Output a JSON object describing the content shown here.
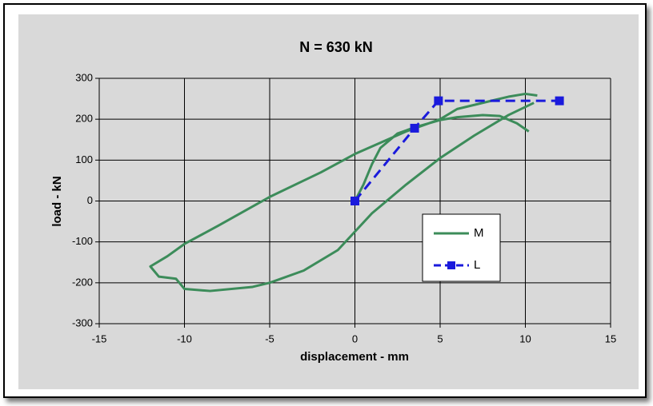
{
  "chart_data": {
    "type": "line",
    "title": "N = 630 kN",
    "x_label": "displacement - mm",
    "y_label": "load - kN",
    "xlim": [
      -15,
      15
    ],
    "xticks": [
      -15,
      -10,
      -5,
      0,
      5,
      10,
      15
    ],
    "ylim": [
      -300,
      300
    ],
    "yticks": [
      -300,
      -200,
      -100,
      0,
      100,
      200,
      300
    ],
    "grid": true,
    "legend": "right",
    "series": [
      {
        "name": "M",
        "color": "#3c8c5a",
        "style": "solid",
        "x": [
          0,
          0.5,
          1,
          1.5,
          2.5,
          3.5,
          5,
          6,
          7.5,
          8.5,
          9.5,
          10.2,
          null,
          10.7,
          10,
          9,
          8,
          6,
          5,
          3,
          0,
          -2,
          -5,
          -8,
          -10,
          -11,
          -12,
          -11.5,
          -10.5,
          -10,
          -8.5,
          -6,
          -5,
          -3,
          -1,
          0,
          1,
          3,
          5,
          7,
          9,
          10.5
        ],
        "values": [
          0,
          40,
          90,
          130,
          165,
          180,
          198,
          205,
          210,
          208,
          190,
          170,
          null,
          258,
          262,
          255,
          245,
          225,
          200,
          170,
          115,
          70,
          10,
          -60,
          -105,
          -135,
          -160,
          -185,
          -190,
          -215,
          -220,
          -210,
          -200,
          -170,
          -120,
          -75,
          -30,
          40,
          105,
          160,
          210,
          240
        ]
      },
      {
        "name": "L",
        "color": "#1a1adc",
        "style": "dashed",
        "x": [
          0,
          3.5,
          4.9,
          12
        ],
        "values": [
          0,
          178,
          245,
          245
        ]
      }
    ]
  }
}
